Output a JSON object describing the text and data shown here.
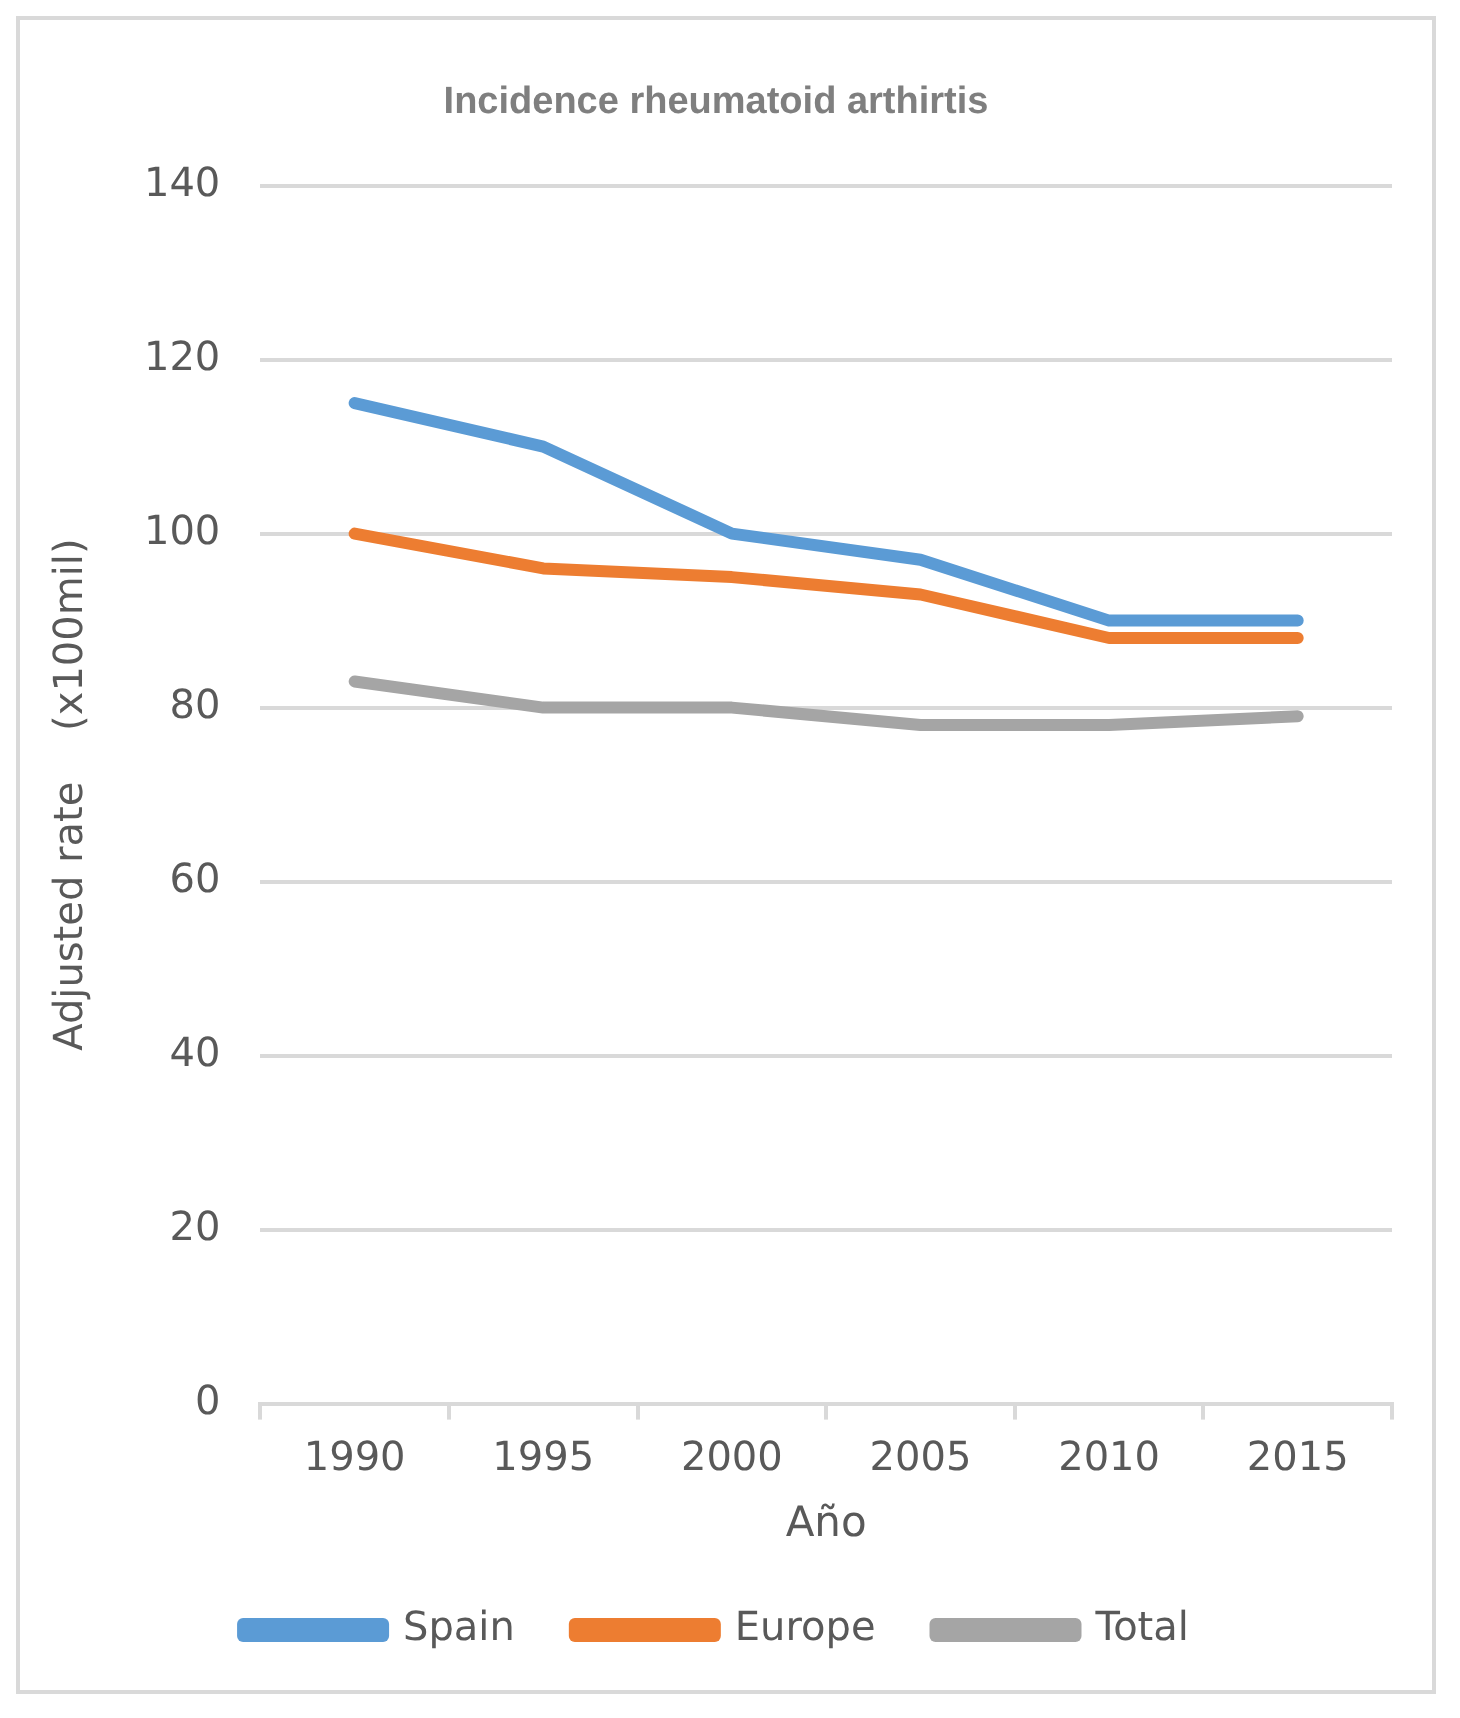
{
  "chart_data": {
    "type": "line",
    "title": "Incidence rheumatoid arthirtis",
    "xlabel": "Año",
    "ylabel": "Adjusted rate    (x100mil)",
    "categories": [
      "1990",
      "1995",
      "2000",
      "2005",
      "2010",
      "2015"
    ],
    "series": [
      {
        "name": "Spain",
        "color": "#5b9bd5",
        "values": [
          115,
          110,
          100,
          97,
          90,
          90
        ]
      },
      {
        "name": "Europe",
        "color": "#ed7d31",
        "values": [
          100,
          96,
          95,
          93,
          88,
          88
        ]
      },
      {
        "name": "Total",
        "color": "#a5a5a5",
        "values": [
          83,
          80,
          80,
          78,
          78,
          79
        ]
      }
    ],
    "ylim": [
      0,
      140
    ],
    "yticks": [
      0,
      20,
      40,
      60,
      80,
      100,
      120,
      140
    ],
    "grid": "y",
    "legend": "bottom",
    "marker": "none",
    "line_style": "solid"
  }
}
